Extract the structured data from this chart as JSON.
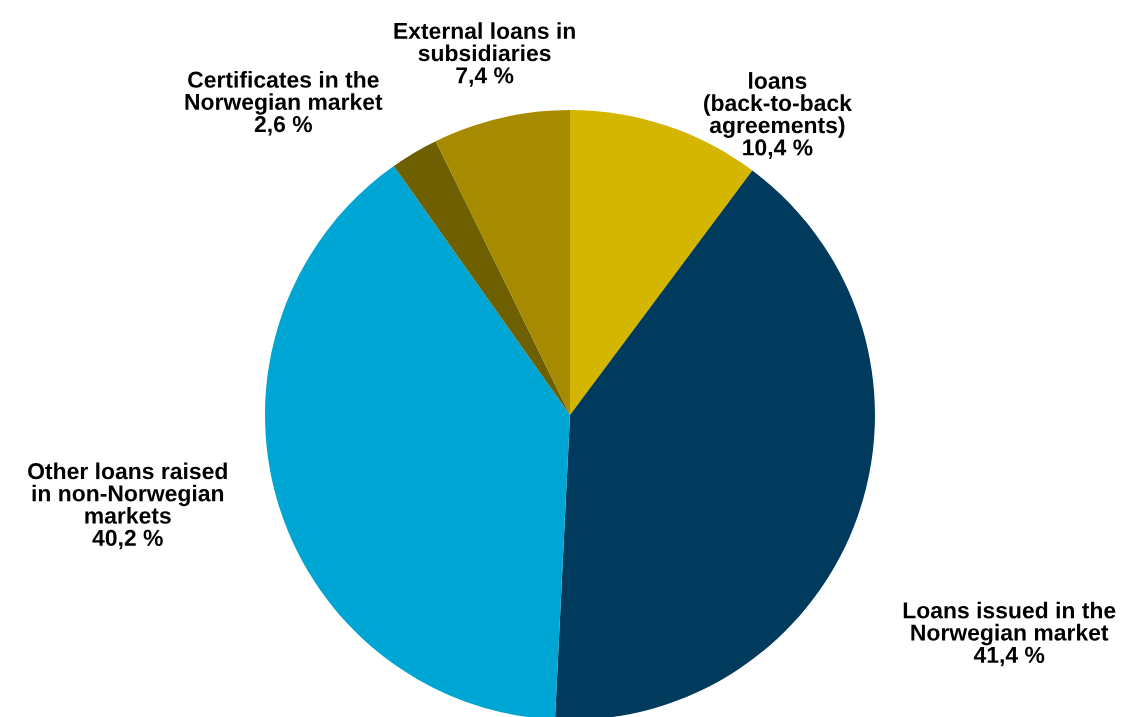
{
  "chart_data": {
    "type": "pie",
    "categories": [
      "loans\n(back-to-back\nagreements)",
      "Loans issued in the\nNorwegian market",
      "Other loans raised\nin non-Norwegian\nmarkets",
      "Certificates in the\nNorwegian market",
      "External loans in\nsubsidiaries"
    ],
    "values": [
      10.4,
      41.4,
      40.2,
      2.6,
      7.4
    ],
    "value_labels": [
      "10,4 %",
      "41,4 %",
      "40,2 %",
      "2,6 %",
      "7,4 %"
    ],
    "colors": [
      "#d4b600",
      "#003a5d",
      "#00a6d3",
      "#6e6000",
      "#a68a00"
    ],
    "legend": false
  }
}
